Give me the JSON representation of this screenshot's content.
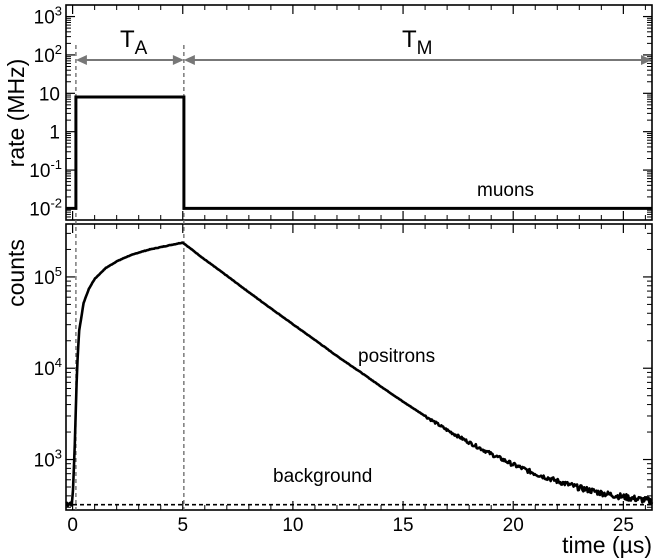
{
  "chart_data": [
    {
      "type": "line",
      "panel": "top",
      "ylabel": "rate (MHz)",
      "yscale": "log",
      "ylim": [
        0.005,
        2000
      ],
      "xlim": [
        -0.3,
        26.3
      ],
      "y_ticks": [
        {
          "base": "10",
          "exp": "-2",
          "value": 0.01
        },
        {
          "base": "10",
          "exp": "-1",
          "value": 0.1
        },
        {
          "base": "1",
          "exp": "",
          "value": 1
        },
        {
          "base": "10",
          "exp": "",
          "value": 10
        },
        {
          "base": "10",
          "exp": "2",
          "value": 100
        },
        {
          "base": "10",
          "exp": "3",
          "value": 1000
        }
      ],
      "series": [
        {
          "name": "muons",
          "x": [
            -0.3,
            0.15,
            0.15,
            5.05,
            5.05,
            26.3
          ],
          "y": [
            0.01,
            0.01,
            8,
            8,
            0.01,
            0.01
          ]
        }
      ],
      "annotations": {
        "ta_main": "T",
        "ta_sub": "A",
        "tm_main": "T",
        "tm_sub": "M",
        "ta_range": [
          0.15,
          5.05
        ],
        "tm_range": [
          5.05,
          26.3
        ],
        "arrow_y": 85
      }
    },
    {
      "type": "line",
      "panel": "bottom",
      "xlabel": "time (µs)",
      "ylabel": "counts",
      "yscale": "log",
      "ylim": [
        280,
        380000
      ],
      "xlim": [
        -0.3,
        26.3
      ],
      "x_ticks": [
        0,
        5,
        10,
        15,
        20,
        25
      ],
      "y_ticks": [
        {
          "base": "10",
          "exp": "3",
          "value": 1000
        },
        {
          "base": "10",
          "exp": "4",
          "value": 10000
        },
        {
          "base": "10",
          "exp": "5",
          "value": 100000
        }
      ],
      "series": [
        {
          "name": "positrons",
          "x": [
            -0.3,
            0,
            0.1,
            0.2,
            0.3,
            0.5,
            0.75,
            1,
            1.5,
            2,
            2.5,
            3,
            3.5,
            4,
            4.5,
            5,
            6,
            7,
            8,
            9,
            10,
            11,
            12,
            13,
            14,
            15,
            16,
            17,
            18,
            19,
            20,
            21,
            22,
            23,
            24,
            25,
            26.3
          ],
          "y": [
            330,
            340,
            1500,
            10000,
            26000,
            52000,
            75000,
            95000,
            125000,
            148000,
            168000,
            185000,
            200000,
            212000,
            225000,
            238000,
            155000,
            103000,
            68000,
            45300,
            30300,
            20400,
            13600,
            9300,
            6300,
            4300,
            3000,
            2100,
            1540,
            1150,
            880,
            700,
            580,
            490,
            430,
            390,
            350
          ]
        },
        {
          "name": "background",
          "x": [
            -0.3,
            26.3
          ],
          "y": [
            320,
            320
          ]
        }
      ],
      "markers": {
        "vlines_x": [
          0.15,
          5.05
        ]
      }
    }
  ],
  "labels": {
    "muons": "muons",
    "positrons": "positrons",
    "background": "background",
    "top_ylabel": "rate (MHz)",
    "bottom_ylabel": "counts",
    "xlabel": "time (µs)"
  }
}
